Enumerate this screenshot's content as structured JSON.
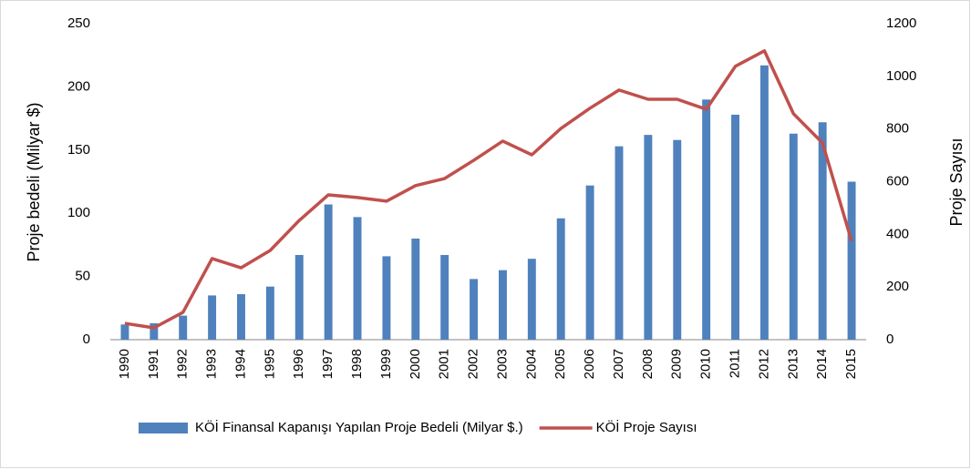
{
  "chart_data": {
    "type": "bar_line",
    "y_label": "Proje bedeli (Milyar $)",
    "y2_label": "Proje Sayısı",
    "categories": [
      "1990",
      "1991",
      "1992",
      "1993",
      "1994",
      "1995",
      "1996",
      "1997",
      "1998",
      "1999",
      "2000",
      "2001",
      "2002",
      "2003",
      "2004",
      "2005",
      "2006",
      "2007",
      "2008",
      "2009",
      "2010",
      "2011",
      "2012",
      "2013",
      "2014",
      "2015"
    ],
    "series": [
      {
        "name": "KÖİ Finansal Kapanışı Yapılan Proje Bedeli (Milyar $.)",
        "type": "bar",
        "color": "#4f81bd",
        "axis": "y",
        "values": [
          12,
          13,
          19,
          35,
          36,
          42,
          67,
          107,
          97,
          66,
          80,
          67,
          48,
          55,
          64,
          96,
          122,
          153,
          162,
          158,
          190,
          178,
          217,
          163,
          172,
          125
        ]
      },
      {
        "name": "KÖİ Proje Sayısı",
        "type": "line",
        "color": "#c0504d",
        "axis": "y2",
        "values": [
          62,
          45,
          104,
          308,
          273,
          339,
          453,
          550,
          540,
          526,
          585,
          612,
          681,
          754,
          702,
          802,
          879,
          948,
          913,
          913,
          875,
          1038,
          1097,
          858,
          747,
          374
        ]
      }
    ],
    "ylim": [
      0,
      250
    ],
    "yticks": [
      0,
      50,
      100,
      150,
      200,
      250
    ],
    "y2lim": [
      0,
      1200
    ],
    "y2ticks": [
      0,
      200,
      400,
      600,
      800,
      1000,
      1200
    ],
    "legend": "bottom"
  }
}
